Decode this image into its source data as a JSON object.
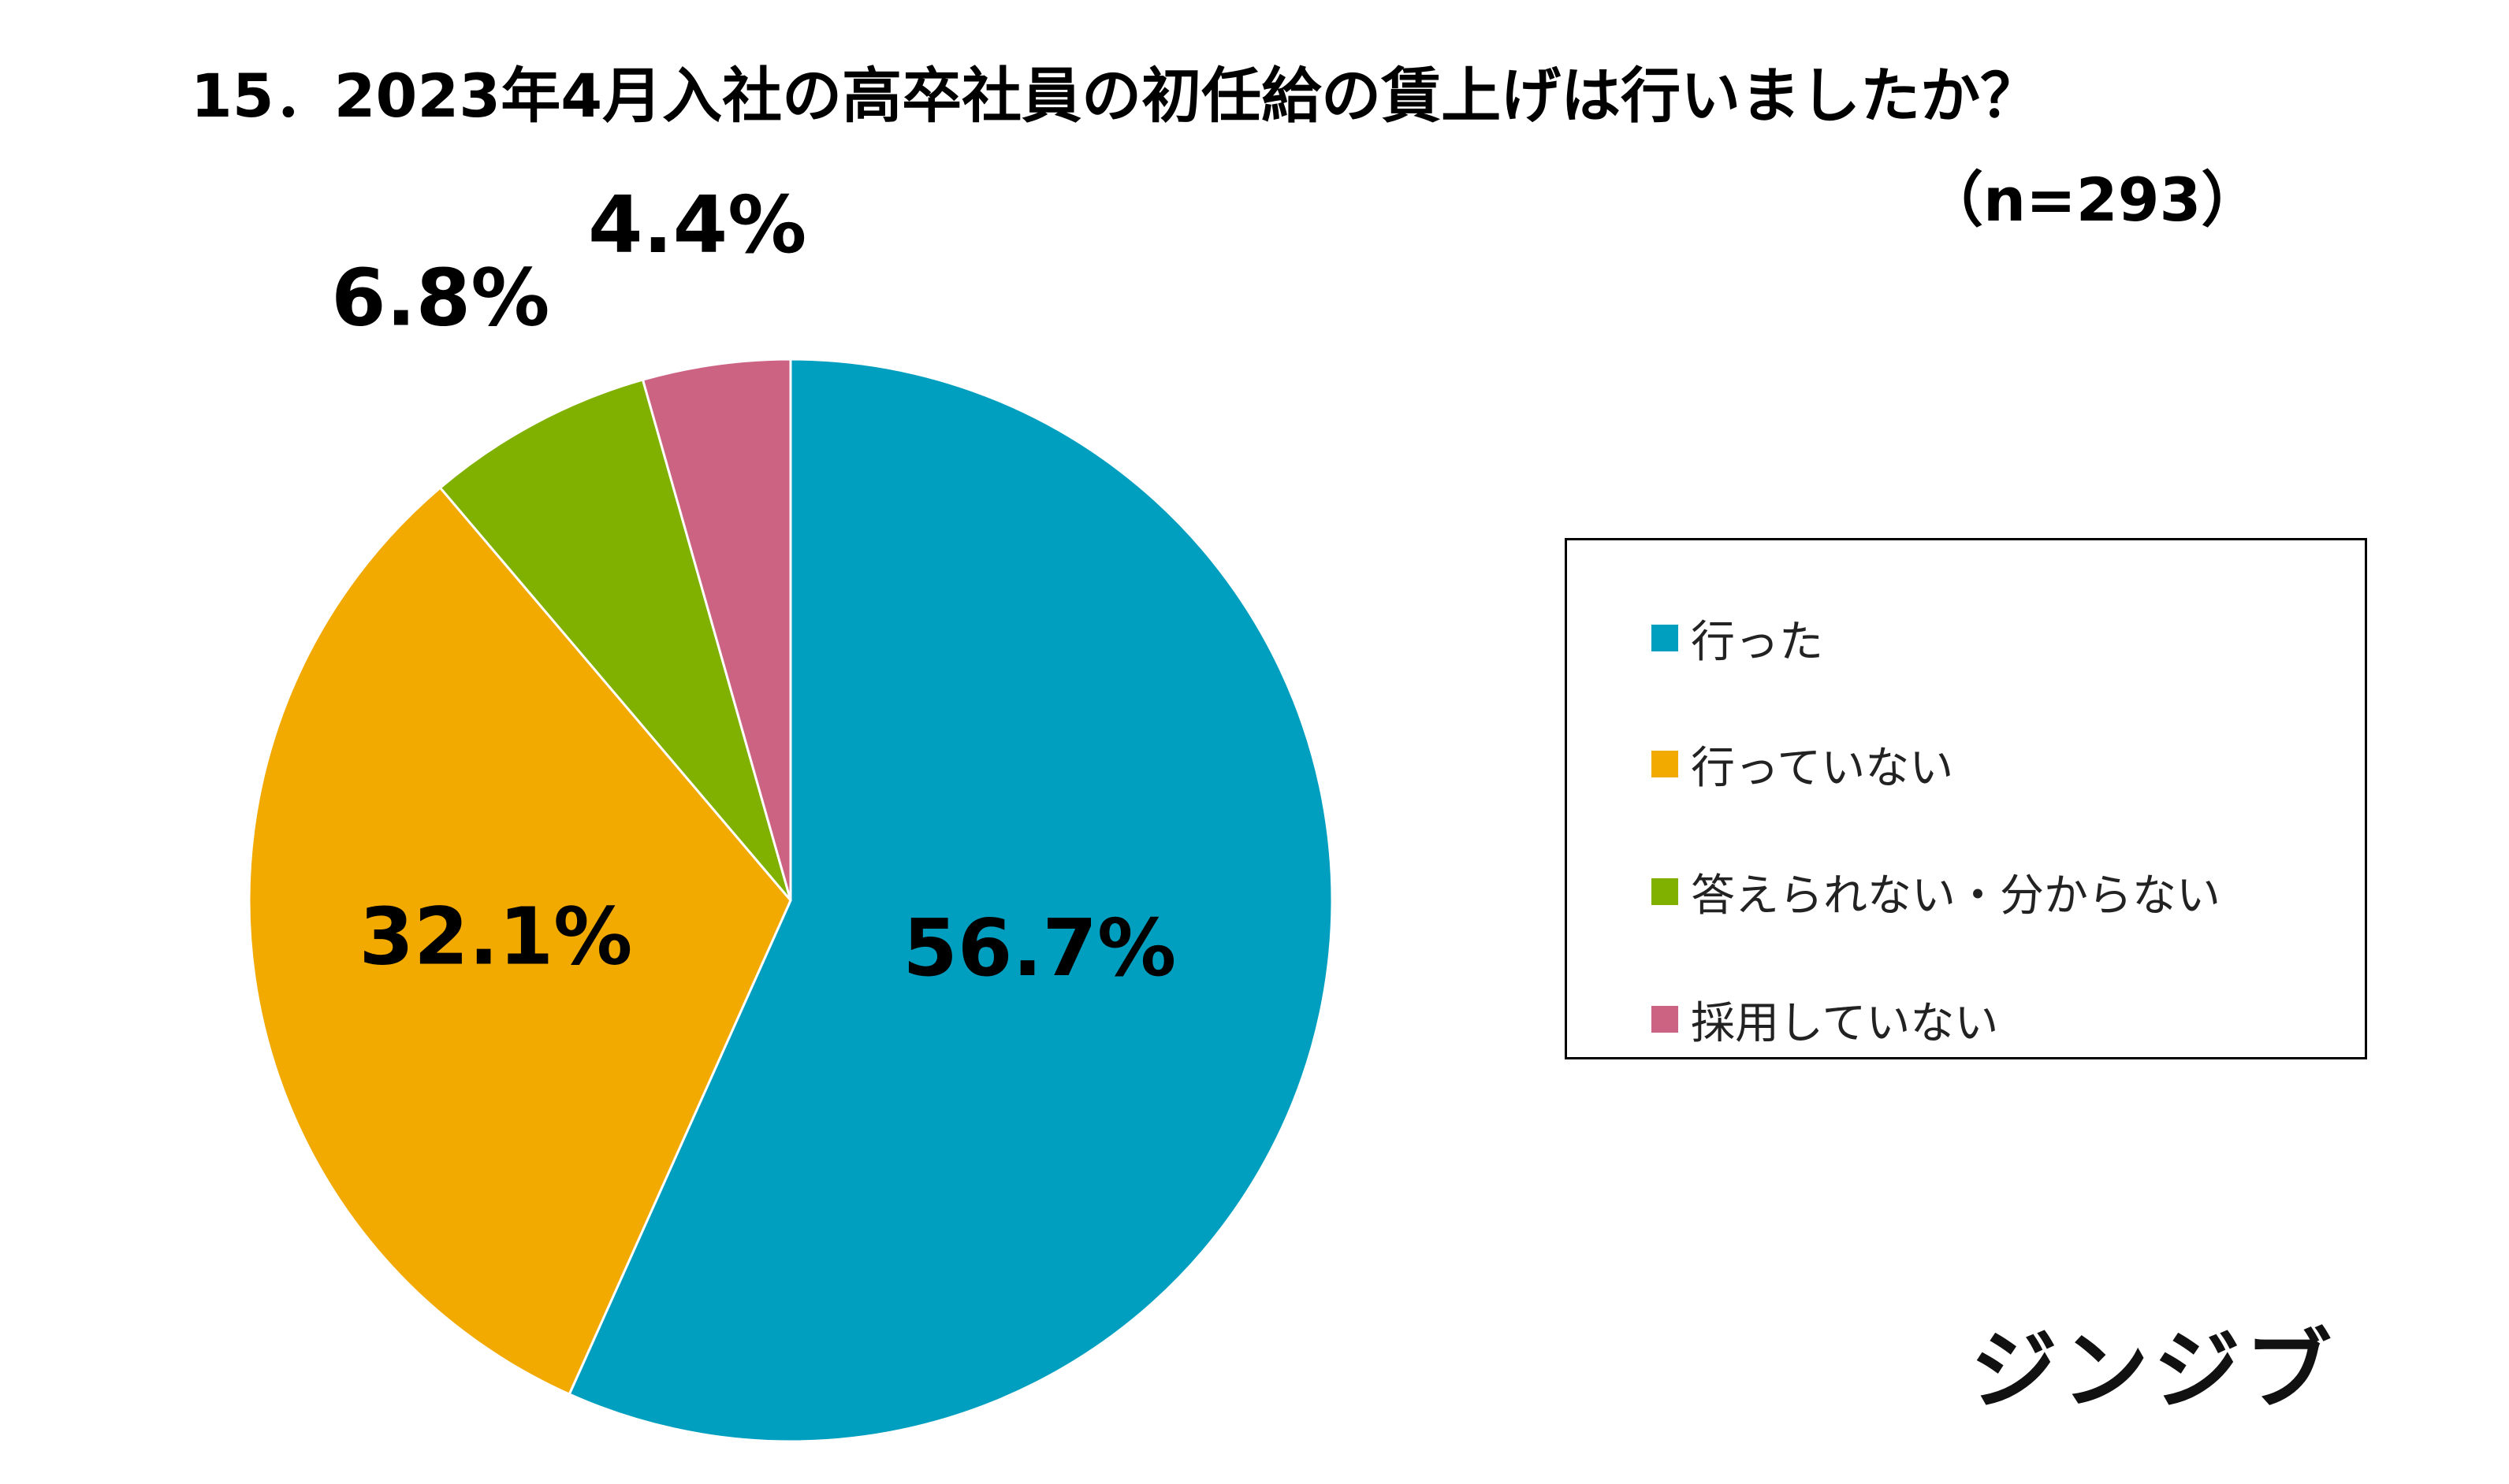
{
  "header": {
    "title": "15．2023年4月入社の高卒社員の初任給の賃上げは行いましたか？",
    "subtitle": "（n=293）"
  },
  "brand": {
    "logo_text": "ジンジブ"
  },
  "chart_data": {
    "type": "pie",
    "title": "15．2023年4月入社の高卒社員の初任給の賃上げは行いましたか？",
    "subtitle": "（n=293）",
    "unit": "%",
    "legend_position": "right",
    "slices": [
      {
        "label": "行った",
        "value": 56.7,
        "display": "56.7%",
        "color": "#009FBF"
      },
      {
        "label": "行っていない",
        "value": 32.1,
        "display": "32.1%",
        "color": "#F2A900"
      },
      {
        "label": "答えられない・分からない",
        "value": 6.8,
        "display": "6.8%",
        "color": "#80B100"
      },
      {
        "label": "採用していない",
        "value": 4.4,
        "display": "4.4%",
        "color": "#CC6382"
      }
    ]
  }
}
